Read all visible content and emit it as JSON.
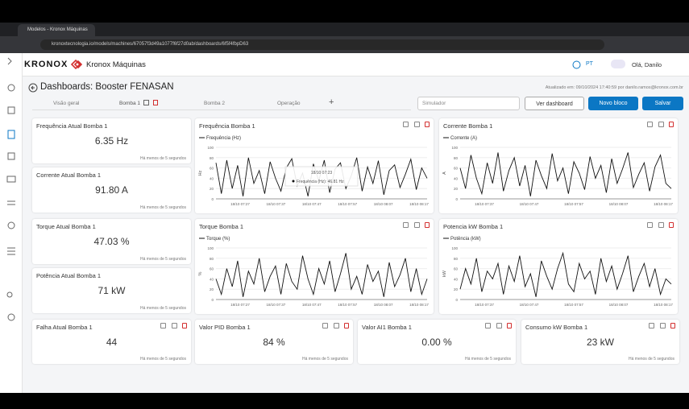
{
  "browser": {
    "tab": "Modelos - Kronox Máquinas",
    "url": "kronoxtecnologia.io/models/machines/67057f3d49a1077f6f27d0ab/dashboards/6f5f4fbpD63"
  },
  "header": {
    "brand": "KRONOX",
    "product": "Kronox Máquinas",
    "language": "PT",
    "greeting": "Olá, Danilo"
  },
  "page": {
    "title": "Dashboards: Booster FENASAN",
    "updated": "Atualizado em: 09/10/2024 17:40:59 por danilo.ramos@kronox.com.br"
  },
  "tabs": [
    "Visão geral",
    "Bomba 1",
    "Bomba 2",
    "Operação"
  ],
  "toolbar": {
    "select": "Simulador",
    "view": "Ver dashboard",
    "new_block": "Novo bloco",
    "save": "Salvar"
  },
  "value_cards": [
    {
      "title": "Frequência Atual Bomba 1",
      "value": "6.35 Hz",
      "footer": "Há menos de 5 segundos"
    },
    {
      "title": "Corrente Atual Bomba 1",
      "value": "91.80 A",
      "footer": "Há menos de 5 segundos"
    },
    {
      "title": "Torque Atual Bomba 1",
      "value": "47.03 %",
      "footer": "Há menos de 5 segundos"
    },
    {
      "title": "Potência Atual Bomba 1",
      "value": "71 kW",
      "footer": "Há menos de 5 segundos"
    },
    {
      "title": "Falha Atual Bomba 1",
      "value": "44",
      "footer": "Há menos de 5 segundos"
    },
    {
      "title": "Valor PID Bomba 1",
      "value": "84 %",
      "footer": "Há menos de 5 segundos"
    },
    {
      "title": "Valor AI1 Bomba 1",
      "value": "0.00 %",
      "footer": "Há menos de 5 segundos"
    },
    {
      "title": "Consumo kW Bomba 1",
      "value": "23 kW",
      "footer": "Há menos de 5 segundos"
    }
  ],
  "charts": [
    {
      "type": "line",
      "title": "Frequência Bomba 1",
      "series_name": "Frequência (Hz)",
      "y_label": "Hz",
      "ylim": [
        0,
        100
      ],
      "yticks": [
        0,
        20,
        40,
        60,
        80,
        100
      ],
      "xticks": [
        "18/10 07:27",
        "18/10 07:37",
        "18/10 07:47",
        "18/10 07:57",
        "18/10 08:07",
        "18/10 08:17"
      ],
      "tooltip": {
        "time": "18/10 07:23",
        "text": "Frequência (Hz): 46.81 Hz"
      },
      "values": [
        70,
        10,
        75,
        20,
        65,
        5,
        80,
        30,
        55,
        10,
        72,
        40,
        15,
        60,
        78,
        25,
        50,
        5,
        68,
        35,
        75,
        12,
        58,
        70,
        20,
        45,
        80,
        15,
        62,
        30,
        74,
        8,
        55,
        66,
        22,
        48,
        77,
        18,
        60,
        40
      ]
    },
    {
      "type": "line",
      "title": "Corrente Bomba 1",
      "series_name": "Corrente (A)",
      "y_label": "A",
      "ylim": [
        0,
        100
      ],
      "yticks": [
        0,
        20,
        40,
        60,
        80,
        100
      ],
      "xticks": [
        "18/10 07:37",
        "18/10 07:47",
        "18/10 07:57",
        "18/10 08:07",
        "18/10 08:17"
      ],
      "values": [
        60,
        20,
        85,
        40,
        10,
        70,
        30,
        90,
        15,
        55,
        80,
        25,
        65,
        5,
        75,
        45,
        20,
        88,
        35,
        60,
        10,
        72,
        50,
        18,
        82,
        40,
        65,
        12,
        78,
        30,
        58,
        90,
        22,
        48,
        70,
        15,
        62,
        85,
        30,
        20
      ]
    },
    {
      "type": "line",
      "title": "Torque Bomba 1",
      "series_name": "Torque (%)",
      "y_label": "%",
      "ylim": [
        0,
        100
      ],
      "yticks": [
        0,
        20,
        40,
        60,
        80,
        100
      ],
      "xticks": [
        "18/10 07:27",
        "18/10 07:37",
        "18/10 07:47",
        "18/10 07:57",
        "18/10 08:07",
        "18/10 08:17"
      ],
      "values": [
        40,
        10,
        60,
        25,
        75,
        5,
        55,
        30,
        80,
        15,
        45,
        65,
        10,
        70,
        35,
        20,
        85,
        40,
        10,
        60,
        30,
        75,
        15,
        50,
        90,
        20,
        45,
        10,
        68,
        35,
        55,
        5,
        72,
        25,
        48,
        80,
        15,
        60,
        10,
        40
      ]
    },
    {
      "type": "line",
      "title": "Potencia kW Bomba 1",
      "series_name": "Potência (kW)",
      "y_label": "kW",
      "ylim": [
        0,
        100
      ],
      "yticks": [
        0,
        20,
        40,
        60,
        80,
        100
      ],
      "xticks": [
        "18/10 07:37",
        "18/10 07:47",
        "18/10 07:57",
        "18/10 08:07",
        "18/10 08:17"
      ],
      "values": [
        20,
        60,
        30,
        80,
        15,
        55,
        40,
        70,
        10,
        65,
        35,
        85,
        25,
        50,
        5,
        75,
        45,
        20,
        60,
        90,
        30,
        15,
        70,
        40,
        55,
        10,
        80,
        35,
        65,
        20,
        50,
        85,
        15,
        45,
        70,
        25,
        60,
        10,
        40,
        30
      ]
    }
  ]
}
